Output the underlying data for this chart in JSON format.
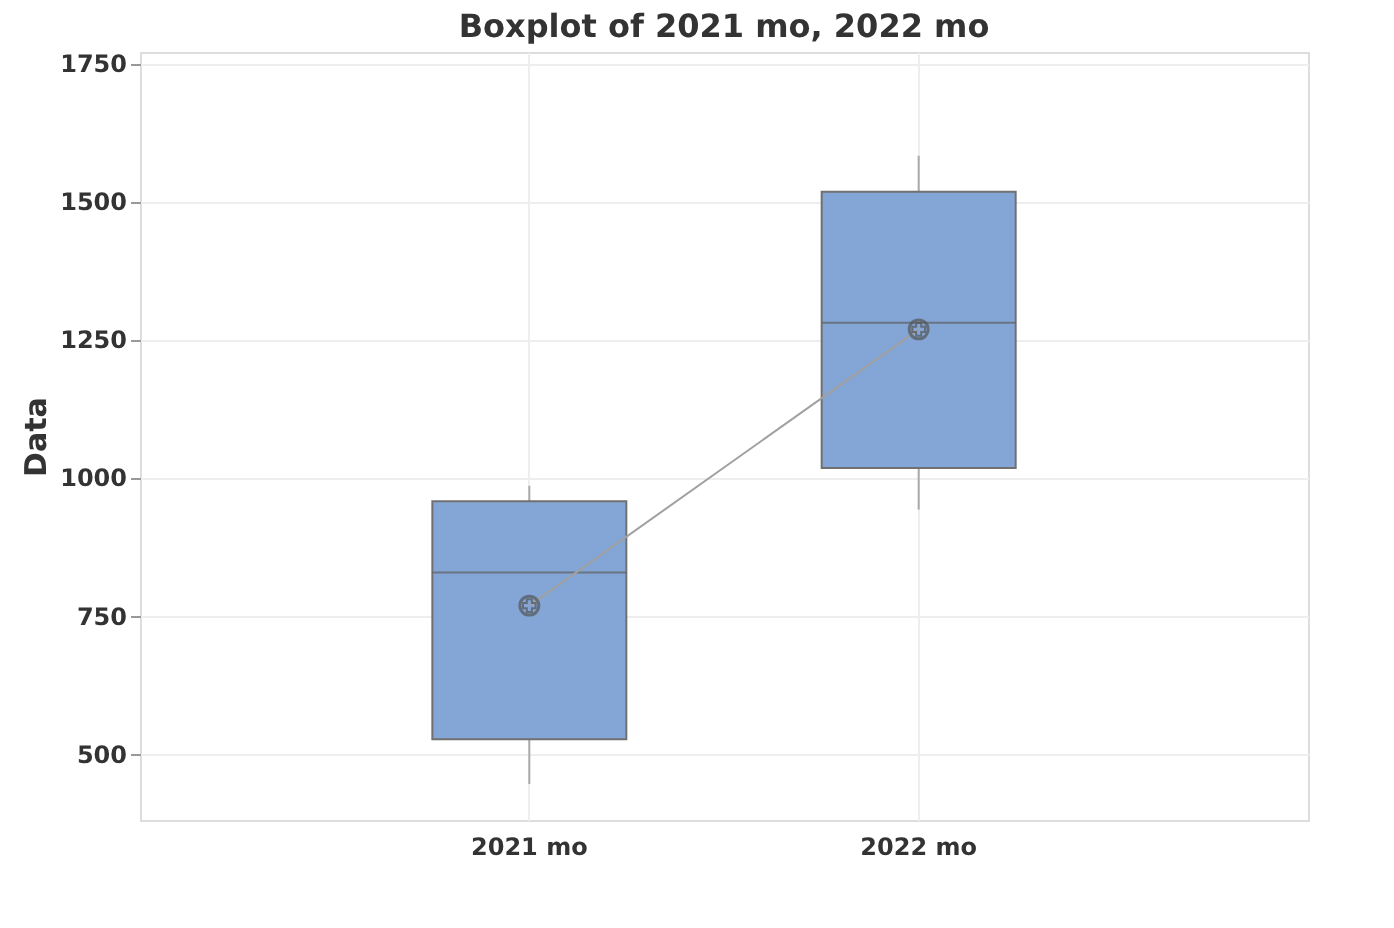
{
  "chart_data": {
    "type": "box",
    "title": "Boxplot of 2021 mo, 2022 mo",
    "ylabel": "Data",
    "categories": [
      "2021 mo",
      "2022 mo"
    ],
    "series": [
      {
        "color": "#84a6d6",
        "boxes": [
          {
            "low": 445,
            "q1": 526,
            "median": 828,
            "q3": 957,
            "high": 985
          },
          {
            "low": 942,
            "q1": 1017,
            "median": 1280,
            "q3": 1517,
            "high": 1582
          }
        ]
      },
      {
        "type": "line",
        "color": "#a0a0a0",
        "values": [
          768,
          1268
        ]
      }
    ],
    "ylim": [
      380,
      1770
    ],
    "yticks": [
      500,
      750,
      {
        "value": 1000,
        "label": "1000"
      },
      {
        "value": 1250,
        "label": "1250"
      },
      {
        "value": 1500,
        "label": "1500"
      },
      {
        "value": 1750,
        "label": "1750"
      }
    ],
    "grid": true,
    "marker": "circle"
  }
}
